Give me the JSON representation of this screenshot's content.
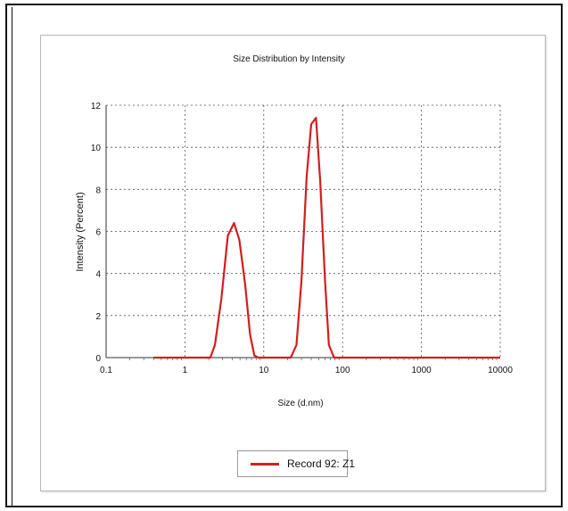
{
  "chart_data": {
    "type": "line",
    "title": "Size Distribution by Intensity",
    "xlabel": "Size (d.nm)",
    "ylabel": "Intensity (Percent)",
    "xscale": "log",
    "xlim": [
      0.1,
      10000
    ],
    "ylim": [
      0,
      12
    ],
    "xticks": [
      "0.1",
      "1",
      "10",
      "100",
      "1000",
      "10000"
    ],
    "yticks": [
      "0",
      "2",
      "4",
      "6",
      "8",
      "10",
      "12"
    ],
    "grid": true,
    "legend_position": "bottom-center",
    "series": [
      {
        "name": "Record 92: Z1",
        "color": "#d11f1f",
        "points": [
          [
            0.4,
            0
          ],
          [
            1,
            0
          ],
          [
            2.1,
            0
          ],
          [
            2.4,
            0.6
          ],
          [
            2.9,
            2.8
          ],
          [
            3.5,
            5.8
          ],
          [
            4.2,
            6.4
          ],
          [
            4.9,
            5.6
          ],
          [
            5.8,
            3.5
          ],
          [
            6.7,
            1.1
          ],
          [
            7.6,
            0.1
          ],
          [
            8.5,
            0
          ],
          [
            10,
            0
          ],
          [
            18,
            0
          ],
          [
            22,
            0
          ],
          [
            26,
            0.6
          ],
          [
            30,
            3.6
          ],
          [
            35,
            8.6
          ],
          [
            40,
            11.1
          ],
          [
            46,
            11.4
          ],
          [
            52,
            8.4
          ],
          [
            60,
            3.6
          ],
          [
            67,
            0.6
          ],
          [
            78,
            0
          ],
          [
            100,
            0
          ],
          [
            1000,
            0
          ],
          [
            10000,
            0
          ]
        ]
      }
    ]
  }
}
